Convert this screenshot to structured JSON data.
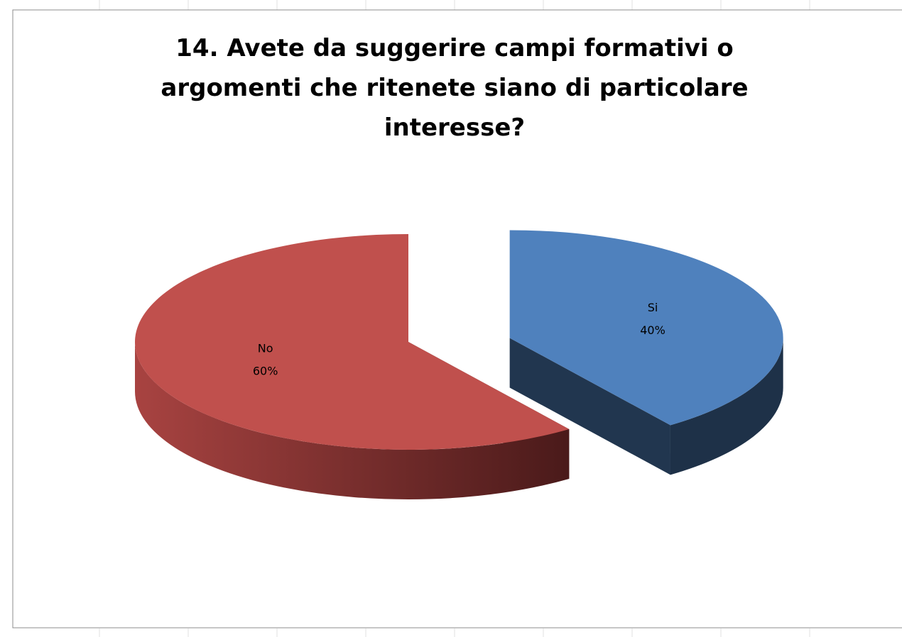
{
  "chart_data": {
    "type": "pie",
    "title": "14. Avete da suggerire campi formativi o argomenti che ritenete siano di particolare interesse?",
    "categories": [
      "Si",
      "No"
    ],
    "values": [
      40,
      60
    ],
    "value_labels": [
      "40%",
      "60%"
    ],
    "colors": [
      "#4f81bd",
      "#c0504d"
    ],
    "start_angle": 0,
    "exploded": [
      0
    ]
  }
}
